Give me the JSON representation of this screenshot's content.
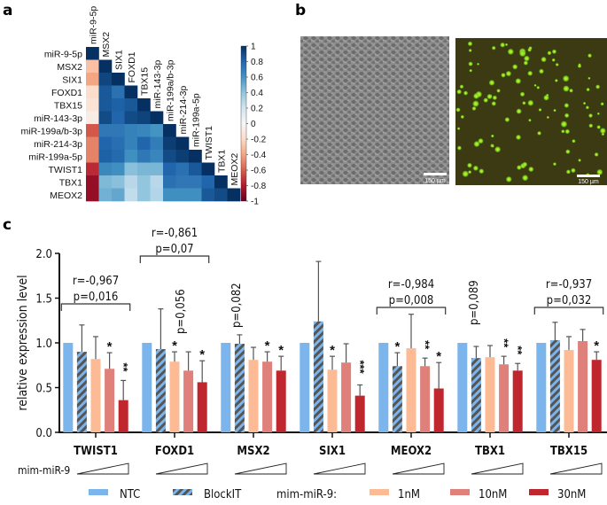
{
  "panels": {
    "a": "a",
    "b": "b",
    "c": "c"
  },
  "chart_data": [
    {
      "type": "heatmap",
      "title": "",
      "panel": "a",
      "labels": [
        "miR-9-5p",
        "MSX2",
        "SIX1",
        "FOXD1",
        "TBX15",
        "miR-143-3p",
        "miR-199a/b-3p",
        "miR-214-3p",
        "miR-199a-5p",
        "TWIST1",
        "TBX1",
        "MEOX2"
      ],
      "layout": "lower-triangle",
      "matrix": [
        [
          1.0
        ],
        [
          -0.3,
          1.0
        ],
        [
          -0.4,
          0.92,
          1.0
        ],
        [
          -0.18,
          0.85,
          0.75,
          1.0
        ],
        [
          -0.14,
          0.85,
          0.82,
          0.85,
          1.0
        ],
        [
          -0.08,
          0.9,
          0.8,
          0.9,
          0.93,
          1.0
        ],
        [
          -0.62,
          0.72,
          0.72,
          0.68,
          0.66,
          0.6,
          1.0
        ],
        [
          -0.5,
          0.8,
          0.76,
          0.68,
          0.8,
          0.7,
          0.95,
          1.0
        ],
        [
          -0.5,
          0.82,
          0.78,
          0.62,
          0.72,
          0.66,
          0.9,
          0.95,
          1.0
        ],
        [
          -0.75,
          0.65,
          0.62,
          0.42,
          0.46,
          0.46,
          0.8,
          0.75,
          0.85,
          1.0
        ],
        [
          -0.88,
          0.45,
          0.42,
          0.28,
          0.4,
          0.28,
          0.75,
          0.72,
          0.72,
          0.8,
          1.0
        ],
        [
          -0.88,
          0.48,
          0.52,
          0.25,
          0.4,
          0.3,
          0.62,
          0.62,
          0.62,
          0.85,
          0.9,
          1.0
        ]
      ],
      "colorbar": {
        "range": [
          -1,
          1
        ],
        "ticks": [
          "1",
          "0.8",
          "0.6",
          "0.4",
          "0.2",
          "0",
          "-0.2",
          "-0.4",
          "-0.6",
          "-0.8",
          "-1"
        ],
        "colors": {
          "neg": "#67001f",
          "mid": "#f7f7f7",
          "pos": "#053061"
        }
      }
    },
    {
      "type": "bar",
      "panel": "c",
      "title": "",
      "xlabel": "",
      "ylabel": "relative expression level",
      "ylim": [
        0,
        2.0
      ],
      "yticks": [
        "0.0",
        "0.5",
        "1.0",
        "1.5",
        "2.0"
      ],
      "categories": [
        "TWIST1",
        "FOXD1",
        "MSX2",
        "SIX1",
        "MEOX2",
        "TBX1",
        "TBX15"
      ],
      "series": [
        {
          "name": "NTC",
          "color": "#7cb4ec",
          "pattern": "solid",
          "values": [
            1.0,
            1.0,
            1.0,
            1.0,
            1.0,
            1.0,
            1.0
          ],
          "errors": [
            null,
            null,
            null,
            null,
            null,
            null,
            null
          ],
          "sig": [
            "",
            "",
            "",
            "",
            "",
            "",
            ""
          ]
        },
        {
          "name": "BlockIT",
          "color": "#7cb4ec",
          "pattern": "hatched",
          "values": [
            0.9,
            0.93,
            0.99,
            1.24,
            0.74,
            0.83,
            1.03
          ],
          "errors": [
            1.2,
            1.38,
            1.09,
            1.91,
            0.89,
            0.96,
            1.23
          ],
          "sig": [
            "",
            "",
            "",
            "",
            "*",
            "",
            ""
          ]
        },
        {
          "name": "1nM",
          "color": "#fdbb95",
          "pattern": "solid",
          "values": [
            0.82,
            0.79,
            0.81,
            0.7,
            0.94,
            0.84,
            0.92
          ],
          "errors": [
            1.07,
            0.9,
            0.95,
            0.85,
            1.32,
            0.97,
            1.07
          ],
          "sig": [
            "",
            "*",
            "",
            "*",
            "",
            "",
            ""
          ]
        },
        {
          "name": "10nM",
          "color": "#e0807a",
          "pattern": "solid",
          "values": [
            0.71,
            0.69,
            0.79,
            0.78,
            0.74,
            0.76,
            1.02
          ],
          "errors": [
            0.89,
            0.9,
            0.9,
            0.99,
            0.83,
            0.85,
            1.15
          ],
          "sig": [
            "*",
            "",
            "*",
            "",
            "**",
            "**",
            ""
          ]
        },
        {
          "name": "30nM",
          "color": "#c0262d",
          "pattern": "solid",
          "values": [
            0.36,
            0.56,
            0.69,
            0.41,
            0.49,
            0.69,
            0.81
          ],
          "errors": [
            0.58,
            0.8,
            0.85,
            0.53,
            0.78,
            0.77,
            0.9
          ],
          "sig": [
            "**",
            "*",
            "*",
            "***",
            "*",
            "**",
            "*"
          ]
        }
      ],
      "annotations": [
        {
          "group": 0,
          "type": "bracket",
          "lines": [
            "r=-0,967",
            "p=0,016"
          ]
        },
        {
          "group": 1,
          "type": "bracket",
          "lines": [
            "r=-0,861",
            "p=0,07"
          ]
        },
        {
          "group": 1,
          "type": "vertical",
          "text": "p=0,056"
        },
        {
          "group": 2,
          "type": "vertical",
          "text": "p=0,082"
        },
        {
          "group": 4,
          "type": "bracket",
          "lines": [
            "r=-0,984",
            "p=0,008"
          ]
        },
        {
          "group": 5,
          "type": "vertical",
          "text": "p=0,089"
        },
        {
          "group": 6,
          "type": "bracket",
          "lines": [
            "r=-0,937",
            "p=0,032"
          ]
        }
      ],
      "gradient_label": "mim-miR-9",
      "legend": {
        "placement": "bottom",
        "items": [
          {
            "label": "NTC"
          },
          {
            "label": "BlockIT"
          },
          {
            "label": "mim-miR-9:",
            "is_header": true
          },
          {
            "label": "1nM"
          },
          {
            "label": "10nM"
          },
          {
            "label": "30nM"
          }
        ]
      }
    }
  ],
  "microscopy": {
    "images": [
      {
        "name": "phase-contrast",
        "scalebar": "150 µm"
      },
      {
        "name": "fluorescence",
        "scalebar": "150 µm"
      }
    ]
  }
}
